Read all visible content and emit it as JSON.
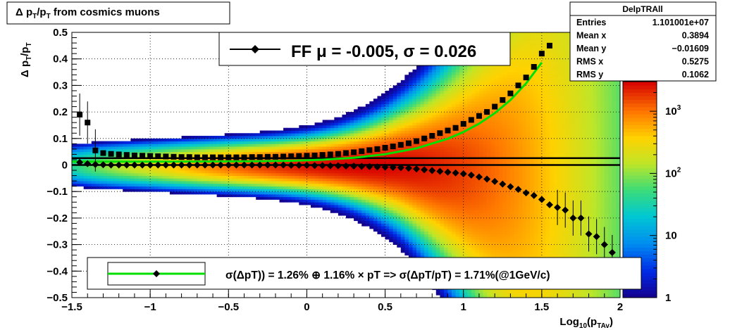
{
  "title_box": {
    "text": "Δ p_T/p_T from cosmics muons"
  },
  "stats_box": {
    "name": "DelpTRAll",
    "rows": [
      {
        "label": "Entries",
        "value": "1.101001e+07"
      },
      {
        "label": "Mean x",
        "value": "0.3894"
      },
      {
        "label": "Mean y",
        "value": "−0.01609"
      },
      {
        "label": "RMS x",
        "value": "0.5275"
      },
      {
        "label": "RMS y",
        "value": "0.1062"
      }
    ]
  },
  "legend_top": {
    "text": "FF μ = -0.005, σ =   0.026"
  },
  "legend_bottom": {
    "text": "σ(ΔpT)) =  1.26% ⊕  1.16% × pT => σ(ΔpT/pT) =  1.71%(@1GeV/c)"
  },
  "colors": {
    "fit_curve": "#00e000",
    "markers": "#000000",
    "frame": "#000000"
  },
  "chart_data": {
    "type": "heatmap",
    "title": "Δ p_T/p_T from cosmics muons",
    "xlabel": "Log10(p_TAv)",
    "ylabel": "Δ p_T/p_T",
    "xlim": [
      -1.5,
      2
    ],
    "ylim": [
      -0.5,
      0.5
    ],
    "x_ticks": [
      "−1.5",
      "−1",
      "−0.5",
      "0",
      "0.5",
      "1",
      "1.5",
      "2"
    ],
    "y_ticks": [
      "−0.5",
      "−0.4",
      "−0.3",
      "−0.2",
      "−0.1",
      "0",
      "0.1",
      "0.2",
      "0.3",
      "0.4",
      "0.5"
    ],
    "colorbar_ticks": [
      "1",
      "10",
      "10^2",
      "10^3"
    ],
    "z_scale": "log",
    "z_range": [
      1,
      3000
    ],
    "grid": true,
    "series": [
      {
        "name": "mean",
        "x": [
          -1.45,
          -1.4,
          -1.35,
          -1.3,
          -1.25,
          -1.2,
          -1.15,
          -1.1,
          -1.05,
          -1.0,
          -0.95,
          -0.9,
          -0.85,
          -0.8,
          -0.75,
          -0.7,
          -0.65,
          -0.6,
          -0.55,
          -0.5,
          -0.45,
          -0.4,
          -0.35,
          -0.3,
          -0.25,
          -0.2,
          -0.15,
          -0.1,
          -0.05,
          0.0,
          0.05,
          0.1,
          0.15,
          0.2,
          0.25,
          0.3,
          0.35,
          0.4,
          0.45,
          0.5,
          0.55,
          0.6,
          0.65,
          0.7,
          0.75,
          0.8,
          0.85,
          0.9,
          0.95,
          1.0,
          1.05,
          1.1,
          1.15,
          1.2,
          1.25,
          1.3,
          1.35,
          1.4,
          1.45,
          1.5,
          1.55,
          1.6,
          1.65,
          1.7,
          1.75,
          1.8,
          1.85,
          1.9,
          1.95
        ],
        "y": [
          0.01,
          0.005,
          0.002,
          0.001,
          0,
          0,
          0,
          0,
          0,
          0,
          0,
          0,
          0,
          0,
          0,
          0,
          0,
          0,
          0,
          0,
          0,
          0,
          0,
          0,
          0,
          0,
          0,
          -0.001,
          -0.001,
          -0.001,
          -0.002,
          -0.002,
          -0.003,
          -0.003,
          -0.004,
          -0.004,
          -0.005,
          -0.006,
          -0.007,
          -0.008,
          -0.009,
          -0.01,
          -0.012,
          -0.015,
          -0.018,
          -0.021,
          -0.024,
          -0.027,
          -0.03,
          -0.033,
          -0.038,
          -0.045,
          -0.053,
          -0.062,
          -0.072,
          -0.082,
          -0.092,
          -0.105,
          -0.115,
          -0.13,
          -0.15,
          -0.16,
          -0.17,
          -0.2,
          -0.2,
          -0.26,
          -0.27,
          -0.3,
          -0.33
        ]
      },
      {
        "name": "rms",
        "x": [
          -1.45,
          -1.4,
          -1.35,
          -1.3,
          -1.25,
          -1.2,
          -1.15,
          -1.1,
          -1.05,
          -1.0,
          -0.95,
          -0.9,
          -0.85,
          -0.8,
          -0.75,
          -0.7,
          -0.65,
          -0.6,
          -0.55,
          -0.5,
          -0.45,
          -0.4,
          -0.35,
          -0.3,
          -0.25,
          -0.2,
          -0.15,
          -0.1,
          -0.05,
          0.0,
          0.05,
          0.1,
          0.15,
          0.2,
          0.25,
          0.3,
          0.35,
          0.4,
          0.45,
          0.5,
          0.55,
          0.6,
          0.65,
          0.7,
          0.75,
          0.8,
          0.85,
          0.9,
          0.95,
          1.0,
          1.05,
          1.1,
          1.15,
          1.2,
          1.25,
          1.3,
          1.35,
          1.4,
          1.45,
          1.5,
          1.55
        ],
        "y": [
          0.19,
          0.16,
          0.055,
          0.045,
          0.042,
          0.04,
          0.038,
          0.036,
          0.035,
          0.034,
          0.033,
          0.032,
          0.031,
          0.03,
          0.03,
          0.029,
          0.029,
          0.029,
          0.029,
          0.029,
          0.029,
          0.029,
          0.03,
          0.03,
          0.031,
          0.031,
          0.032,
          0.033,
          0.034,
          0.035,
          0.036,
          0.038,
          0.04,
          0.042,
          0.045,
          0.048,
          0.052,
          0.056,
          0.06,
          0.065,
          0.07,
          0.076,
          0.082,
          0.09,
          0.1,
          0.11,
          0.12,
          0.13,
          0.14,
          0.155,
          0.17,
          0.185,
          0.2,
          0.22,
          0.245,
          0.27,
          0.3,
          0.33,
          0.37,
          0.42,
          0.45
        ]
      }
    ],
    "fit_curve": {
      "name": "fit",
      "x": [
        -1.5,
        -1.3,
        -1.1,
        -0.9,
        -0.7,
        -0.5,
        -0.3,
        -0.1,
        0.1,
        0.3,
        0.5,
        0.7,
        0.9,
        1.0,
        1.1,
        1.2,
        1.3,
        1.4,
        1.5
      ],
      "y": [
        0.0126,
        0.0126,
        0.0127,
        0.0128,
        0.013,
        0.0135,
        0.0143,
        0.016,
        0.0198,
        0.0271,
        0.0405,
        0.0628,
        0.0989,
        0.1243,
        0.156,
        0.1956,
        0.2452,
        0.3078,
        0.3866
      ]
    },
    "horizontal_lines": [
      0,
      0.026
    ]
  }
}
